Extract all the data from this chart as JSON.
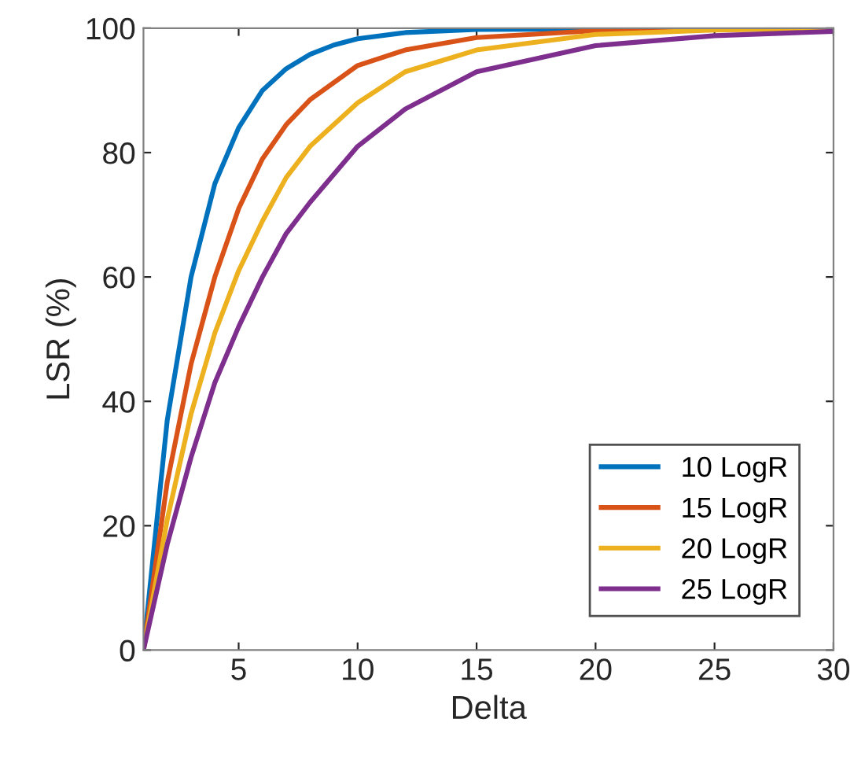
{
  "chart_data": {
    "type": "line",
    "xlabel": "Delta",
    "ylabel": "LSR (%)",
    "xlim": [
      1,
      30
    ],
    "xticks": [
      5,
      10,
      15,
      20,
      25,
      30
    ],
    "ylim": [
      0,
      100
    ],
    "yticks": [
      0,
      20,
      40,
      60,
      80,
      100
    ],
    "grid": false,
    "legend": "bottom right",
    "marker": "none",
    "line_style": "solid",
    "series": [
      {
        "name": "10 LogR",
        "color": "#0072bd",
        "x": [
          1,
          2,
          3,
          4,
          5,
          6,
          7,
          8,
          9,
          10,
          12,
          15,
          30
        ],
        "values": [
          0,
          37,
          60,
          75,
          84,
          90,
          93.5,
          95.8,
          97.3,
          98.3,
          99.3,
          99.8,
          100
        ]
      },
      {
        "name": "15 LogR",
        "color": "#d95319",
        "x": [
          1,
          2,
          3,
          4,
          5,
          6,
          7,
          8,
          10,
          12,
          15,
          20,
          30
        ],
        "values": [
          0,
          27,
          46,
          60,
          71,
          79,
          84.5,
          88.5,
          94,
          96.5,
          98.5,
          99.6,
          100
        ]
      },
      {
        "name": "20 LogR",
        "color": "#edb120",
        "x": [
          1,
          2,
          3,
          4,
          5,
          6,
          7,
          8,
          10,
          12,
          15,
          20,
          25,
          30
        ],
        "values": [
          0,
          21,
          38,
          51,
          61,
          69,
          76,
          81,
          88,
          93,
          96.5,
          99,
          99.7,
          100
        ]
      },
      {
        "name": "25 LogR",
        "color": "#7e2f8e",
        "x": [
          1,
          2,
          3,
          4,
          5,
          6,
          7,
          8,
          10,
          12,
          15,
          20,
          25,
          30
        ],
        "values": [
          0,
          17,
          31,
          43,
          52,
          60,
          67,
          72,
          81,
          87,
          93,
          97.2,
          98.8,
          99.5
        ]
      }
    ]
  }
}
